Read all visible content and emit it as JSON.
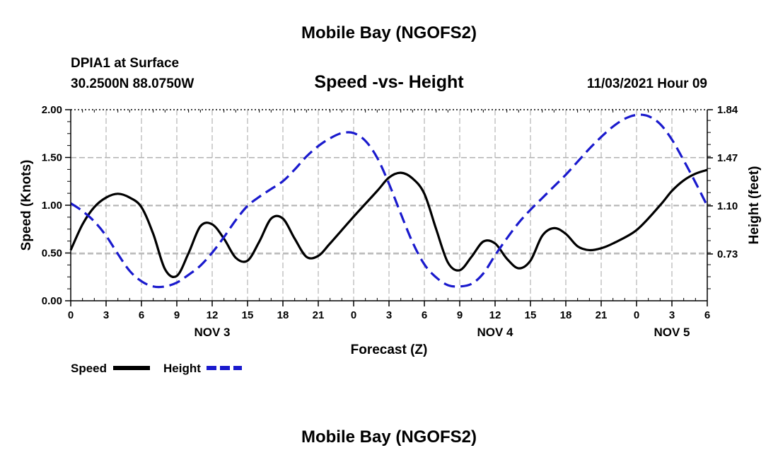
{
  "header": {
    "title": "Mobile Bay (NGOFS2)",
    "station": "DPIA1 at Surface",
    "coords": "30.2500N  88.0750W",
    "datetime": "11/03/2021 Hour 09"
  },
  "footer": {
    "title": "Mobile Bay (NGOFS2)"
  },
  "colors": {
    "speed": "#000000",
    "height": "#1a1acd",
    "grid": "#b4b4b4"
  },
  "chart_data": {
    "type": "line",
    "title": "Speed -vs- Height",
    "xlabel": "Forecast (Z)",
    "ylabel": "Speed (Knots)",
    "y2label": "Height (feet)",
    "xlim": [
      0,
      54
    ],
    "ylim": [
      0,
      2.0
    ],
    "y2lim": [
      0.37,
      1.84
    ],
    "x_tick_values": [
      0,
      3,
      6,
      9,
      12,
      15,
      18,
      21,
      24,
      27,
      30,
      33,
      36,
      39,
      42,
      45,
      48,
      51,
      54
    ],
    "x_tick_labels": [
      "0",
      "3",
      "6",
      "9",
      "12",
      "15",
      "18",
      "21",
      "0",
      "3",
      "6",
      "9",
      "12",
      "15",
      "18",
      "21",
      "0",
      "3",
      "6"
    ],
    "y_ticks": [
      {
        "value": 0.0,
        "label": "0.00"
      },
      {
        "value": 0.5,
        "label": "0.50"
      },
      {
        "value": 1.0,
        "label": "1.00"
      },
      {
        "value": 1.5,
        "label": "1.50"
      },
      {
        "value": 2.0,
        "label": "2.00"
      }
    ],
    "y2_ticks": [
      {
        "value": 0.73,
        "label": "0.73"
      },
      {
        "value": 1.1,
        "label": "1.10"
      },
      {
        "value": 1.47,
        "label": "1.47"
      },
      {
        "value": 1.84,
        "label": "1.84"
      }
    ],
    "day_labels": [
      {
        "x": 12,
        "label": "NOV 3"
      },
      {
        "x": 36,
        "label": "NOV 4"
      },
      {
        "x": 51,
        "label": "NOV 5"
      }
    ],
    "grid": true,
    "series": [
      {
        "name": "Speed",
        "axis": "left",
        "style": "solid",
        "x": [
          0,
          1,
          2,
          3,
          4,
          5,
          6,
          7,
          8,
          9,
          10,
          11,
          12,
          13,
          14,
          15,
          16,
          17,
          18,
          19,
          20,
          21,
          22,
          24,
          26,
          27,
          28,
          29,
          30,
          31,
          32,
          33,
          34,
          35,
          36,
          37,
          38,
          39,
          40,
          41,
          42,
          43,
          44,
          45,
          46,
          48,
          50,
          51,
          52,
          53,
          54
        ],
        "values": [
          0.53,
          0.8,
          0.98,
          1.08,
          1.12,
          1.08,
          0.98,
          0.7,
          0.33,
          0.26,
          0.5,
          0.78,
          0.8,
          0.65,
          0.45,
          0.42,
          0.62,
          0.86,
          0.86,
          0.65,
          0.46,
          0.47,
          0.6,
          0.88,
          1.15,
          1.29,
          1.34,
          1.28,
          1.12,
          0.75,
          0.4,
          0.32,
          0.46,
          0.62,
          0.6,
          0.44,
          0.34,
          0.42,
          0.68,
          0.76,
          0.7,
          0.57,
          0.53,
          0.55,
          0.6,
          0.74,
          1.0,
          1.15,
          1.26,
          1.33,
          1.37
        ]
      },
      {
        "name": "Height",
        "axis": "right",
        "style": "dashed",
        "x": [
          0,
          1,
          2,
          3,
          4,
          5,
          6,
          7,
          8,
          9,
          10,
          11,
          12,
          13,
          14,
          15,
          16,
          17,
          18,
          19,
          20,
          21,
          22,
          23,
          24,
          25,
          26,
          27,
          28,
          29,
          30,
          31,
          32,
          33,
          34,
          35,
          36,
          37,
          38,
          39,
          40,
          41,
          42,
          43,
          44,
          45,
          46,
          47,
          48,
          49,
          50,
          51,
          52,
          53,
          54
        ],
        "values": [
          1.12,
          1.06,
          0.98,
          0.87,
          0.73,
          0.6,
          0.52,
          0.48,
          0.48,
          0.51,
          0.57,
          0.64,
          0.74,
          0.86,
          0.99,
          1.1,
          1.17,
          1.23,
          1.29,
          1.38,
          1.48,
          1.56,
          1.62,
          1.66,
          1.66,
          1.6,
          1.47,
          1.27,
          1.04,
          0.82,
          0.65,
          0.55,
          0.49,
          0.48,
          0.5,
          0.58,
          0.72,
          0.85,
          0.97,
          1.07,
          1.16,
          1.25,
          1.34,
          1.44,
          1.54,
          1.63,
          1.71,
          1.77,
          1.8,
          1.79,
          1.73,
          1.61,
          1.45,
          1.28,
          1.1
        ]
      }
    ]
  },
  "legend": {
    "speed_label": "Speed",
    "height_label": "Height"
  }
}
